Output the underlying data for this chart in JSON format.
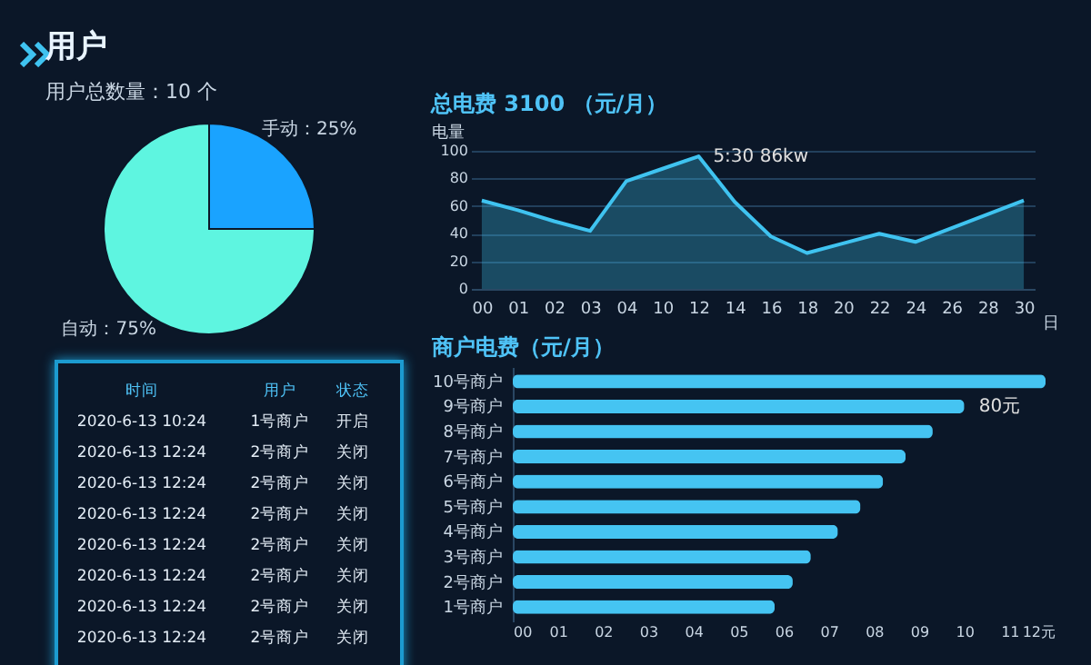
{
  "chart_data": [
    {
      "type": "pie",
      "title": "用户",
      "subtitle": "用户总数量：10 个",
      "categories": [
        "手动",
        "自动"
      ],
      "values": [
        25,
        75
      ],
      "colors": [
        "#1aa3ff",
        "#5ef5e0"
      ],
      "value_labels": [
        "25%",
        "75%"
      ]
    },
    {
      "type": "area",
      "title": "总电费 3100 （元/月）",
      "ylabel": "电量",
      "xlabel": "日",
      "categories": [
        "00",
        "01",
        "02",
        "03",
        "04",
        "10",
        "12",
        "14",
        "16",
        "18",
        "20",
        "22",
        "24",
        "26",
        "28",
        "30"
      ],
      "series": [
        {
          "color": "#3fc3f0",
          "values": [
            64,
            57,
            49,
            42,
            78,
            87,
            96,
            63,
            38,
            26,
            33,
            40,
            34,
            44,
            54,
            64
          ]
        }
      ],
      "ylim": [
        0,
        100
      ],
      "yticks": [
        0,
        20,
        40,
        60,
        80,
        100
      ],
      "grid": "y",
      "annotations": [
        {
          "text": "5:30  86kw",
          "x": "12",
          "y": 96
        }
      ]
    },
    {
      "type": "other",
      "annotations": [
        "时间",
        "用户",
        "状态",
        "2020-6-13  10:24",
        "1号商户",
        "开启",
        "2020-6-13  12:24",
        "2号商户",
        "关闭",
        "2020-6-13  12:24",
        "2号商户",
        "关闭",
        "2020-6-13  12:24",
        "2号商户",
        "关闭",
        "2020-6-13  12:24",
        "2号商户",
        "关闭",
        "2020-6-13  12:24",
        "2号商户",
        "关闭",
        "2020-6-13  12:24",
        "2号商户",
        "关闭",
        "2020-6-13  12:24",
        "2号商户",
        "关闭"
      ]
    },
    {
      "type": "bar",
      "orientation": "horizontal",
      "title": "商户电费（元/月）",
      "categories": [
        "10号商户",
        "9号商户",
        "8号商户",
        "7号商户",
        "6号商户",
        "5号商户",
        "4号商户",
        "3号商户",
        "2号商户",
        "1号商户"
      ],
      "series": [
        {
          "color": "#45c4f2",
          "values": [
            11.8,
            10,
            9.3,
            8.7,
            8.2,
            7.7,
            7.2,
            6.6,
            6.2,
            5.8
          ]
        }
      ],
      "xlim": [
        0,
        12
      ],
      "xticks": [
        {
          "value": 0,
          "label": "00"
        },
        {
          "value": 1,
          "label": "01"
        },
        {
          "value": 2,
          "label": "02"
        },
        {
          "value": 3,
          "label": "03"
        },
        {
          "value": 4,
          "label": "04"
        },
        {
          "value": 5,
          "label": "05"
        },
        {
          "value": 6,
          "label": "06"
        },
        {
          "value": 7,
          "label": "07"
        },
        {
          "value": 8,
          "label": "08"
        },
        {
          "value": 9,
          "label": "09"
        },
        {
          "value": 10,
          "label": "10"
        },
        {
          "value": 11,
          "label": "11"
        },
        {
          "value": 12,
          "label": "12元"
        }
      ],
      "annotations": [
        {
          "text": "80元",
          "x": 10,
          "y": "9号商户"
        }
      ]
    }
  ]
}
